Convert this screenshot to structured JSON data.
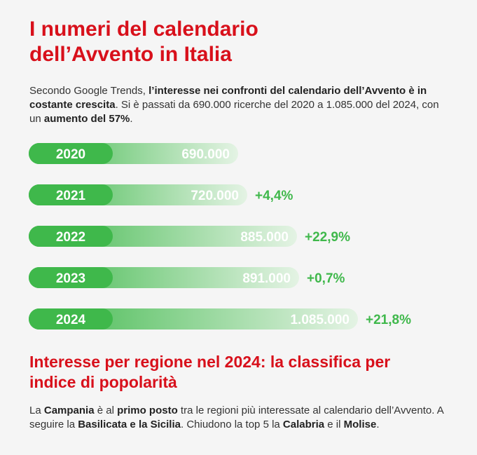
{
  "header": {
    "title_line1": "I numeri del calendario",
    "title_line2": "dell’Avvento in Italia"
  },
  "intro": {
    "t1": "Secondo Google Trends, ",
    "b1": "l’interesse nei confronti del calendario dell’Avvento è in costante crescita",
    "t2": ". Si è passati da 690.000 ricerche del 2020 a 1.085.000 del 2024, con un ",
    "b2": "aumento del 57%",
    "t3": "."
  },
  "colors": {
    "title_red": "#d8101b",
    "bar_green": "#3fb84b",
    "bar_fade": "#e4f3e4",
    "pct_green": "#3fb84b"
  },
  "chart_data": {
    "type": "bar",
    "orientation": "horizontal",
    "categories": [
      "2020",
      "2021",
      "2022",
      "2023",
      "2024"
    ],
    "values": [
      690000,
      720000,
      885000,
      891000,
      1085000
    ],
    "value_labels": [
      "690.000",
      "720.000",
      "885.000",
      "891.000",
      "1.085.000"
    ],
    "change_labels": [
      "",
      "+4,4%",
      "+22,9%",
      "+0,7%",
      "+21,8%"
    ]
  },
  "section2": {
    "title_line1": "Interesse per regione nel 2024: la classifica per",
    "title_line2": "indice di popolarità"
  },
  "outro": {
    "t1": "La ",
    "b1": "Campania",
    "t2": " è al ",
    "b2": "primo posto",
    "t3": " tra le regioni più interessate al calendario dell’Avvento. A seguire la ",
    "b3": "Basilicata e la Sicilia",
    "t4": ". Chiudono la top 5 la ",
    "b4": "Calabria",
    "t5": " e il ",
    "b5": "Molise",
    "t6": "."
  }
}
